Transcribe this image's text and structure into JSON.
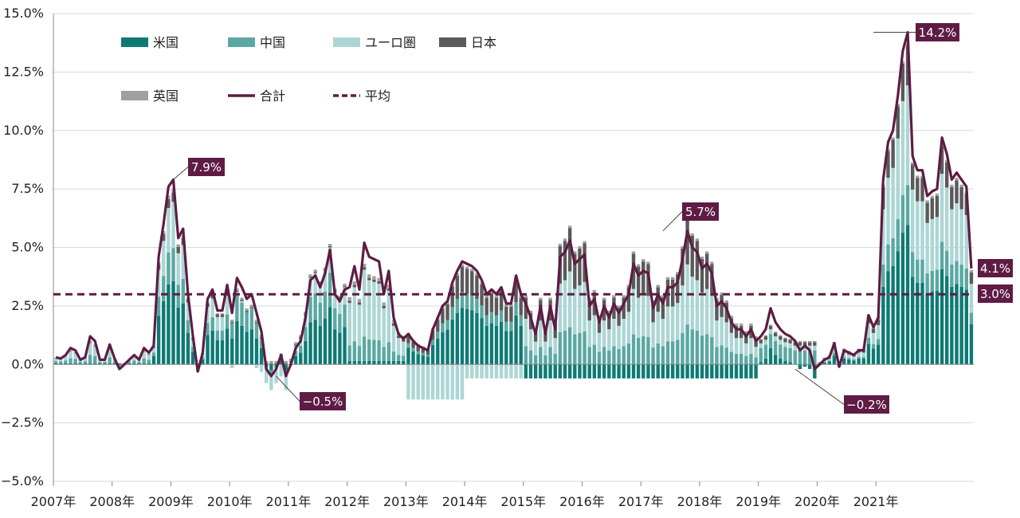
{
  "chart_data": {
    "type": "bar",
    "stacked": true,
    "ylim": [
      -5.0,
      15.0
    ],
    "y_ticks": [
      "15.0%",
      "12.5%",
      "10.0%",
      "7.5%",
      "5.0%",
      "2.5%",
      "0.0%",
      "−2.5%",
      "−5.0%"
    ],
    "y_tick_values": [
      15.0,
      12.5,
      10.0,
      7.5,
      5.0,
      2.5,
      0.0,
      -2.5,
      -5.0
    ],
    "x_labels": [
      "2007年",
      "2008年",
      "2009年",
      "2010年",
      "2011年",
      "2012年",
      "2013年",
      "2014年",
      "2015年",
      "2016年",
      "2017年",
      "2018年",
      "2019年",
      "2020年",
      "2021年"
    ],
    "grid": true,
    "legend": [
      {
        "name": "米国",
        "color": "#0E7A74",
        "style": "bar"
      },
      {
        "name": "中国",
        "color": "#5BA8A2",
        "style": "bar"
      },
      {
        "name": "ユーロ圏",
        "color": "#ACD6D4",
        "style": "bar"
      },
      {
        "name": "日本",
        "color": "#5A5A5A",
        "style": "bar"
      },
      {
        "name": "英国",
        "color": "#A0A0A0",
        "style": "bar"
      },
      {
        "name": "合計",
        "color": "#5E1C44",
        "style": "line"
      },
      {
        "name": "平均",
        "color": "#5E1C44",
        "style": "dashed"
      }
    ],
    "legend_placement": "top-left",
    "average": 3.0,
    "total_series_name": "合計",
    "x_start_year": 2007,
    "months_per_year": 12,
    "total": [
      0.3,
      0.25,
      0.4,
      0.7,
      0.6,
      0.2,
      0.3,
      1.2,
      1.0,
      0.2,
      0.2,
      0.85,
      0.25,
      -0.2,
      0.0,
      0.2,
      0.4,
      0.2,
      0.7,
      0.5,
      0.8,
      4.6,
      6.0,
      7.6,
      7.9,
      5.4,
      5.8,
      3.0,
      1.2,
      -0.3,
      0.5,
      2.8,
      3.2,
      2.3,
      2.3,
      3.4,
      2.2,
      3.7,
      3.3,
      2.8,
      3.0,
      2.2,
      1.4,
      -0.2,
      -0.5,
      -0.2,
      0.4,
      -0.5,
      0.0,
      0.7,
      1.0,
      2.0,
      3.6,
      3.8,
      3.3,
      3.9,
      4.9,
      3.0,
      2.7,
      3.2,
      3.3,
      4.2,
      3.2,
      5.2,
      4.6,
      4.5,
      4.4,
      3.0,
      4.0,
      2.0,
      1.3,
      1.1,
      1.3,
      1.0,
      0.8,
      0.7,
      0.6,
      1.5,
      2.0,
      2.5,
      2.7,
      3.5,
      4.0,
      4.4,
      4.3,
      4.2,
      4.0,
      3.6,
      3.0,
      3.2,
      3.0,
      3.3,
      2.6,
      2.6,
      3.8,
      3.0,
      2.6,
      2.0,
      1.3,
      2.5,
      1.3,
      2.5,
      1.5,
      4.6,
      4.8,
      5.3,
      4.3,
      4.5,
      4.7,
      2.5,
      2.8,
      1.8,
      2.5,
      2.0,
      2.6,
      2.2,
      2.6,
      3.0,
      4.3,
      3.8,
      4.0,
      3.9,
      2.4,
      3.0,
      2.6,
      3.3,
      3.3,
      3.5,
      4.5,
      5.7,
      5.0,
      4.8,
      4.1,
      4.3,
      3.9,
      2.5,
      2.7,
      2.4,
      1.8,
      1.5,
      1.5,
      1.2,
      1.5,
      1.0,
      1.2,
      1.5,
      2.4,
      1.8,
      1.5,
      1.3,
      1.2,
      1.0,
      0.6,
      0.8,
      0.6,
      -0.2,
      0.0,
      0.2,
      0.3,
      0.9,
      -0.1,
      0.6,
      0.5,
      0.4,
      0.6,
      0.6,
      2.1,
      1.6,
      2.0,
      7.9,
      9.5,
      10.0,
      11.5,
      13.4,
      14.2,
      8.9,
      8.3,
      8.3,
      7.2,
      7.4,
      7.5,
      9.7,
      9.0,
      7.9,
      8.2,
      7.9,
      7.6,
      4.1
    ],
    "callouts": [
      {
        "text": "7.9%",
        "value": 7.9,
        "anchor": "2009-01"
      },
      {
        "text": "−0.5%",
        "value": -0.5,
        "anchor": "2010-10"
      },
      {
        "text": "5.7%",
        "value": 5.7,
        "anchor": "2017-04"
      },
      {
        "text": "14.2%",
        "value": 14.2,
        "anchor": "2020-12"
      },
      {
        "text": "−0.2%",
        "value": -0.2,
        "anchor": "2019-08"
      },
      {
        "text": "4.1%",
        "value": 4.1,
        "anchor": "2021-last"
      },
      {
        "text": "3.0%",
        "value": 3.0,
        "anchor": "average"
      }
    ]
  }
}
